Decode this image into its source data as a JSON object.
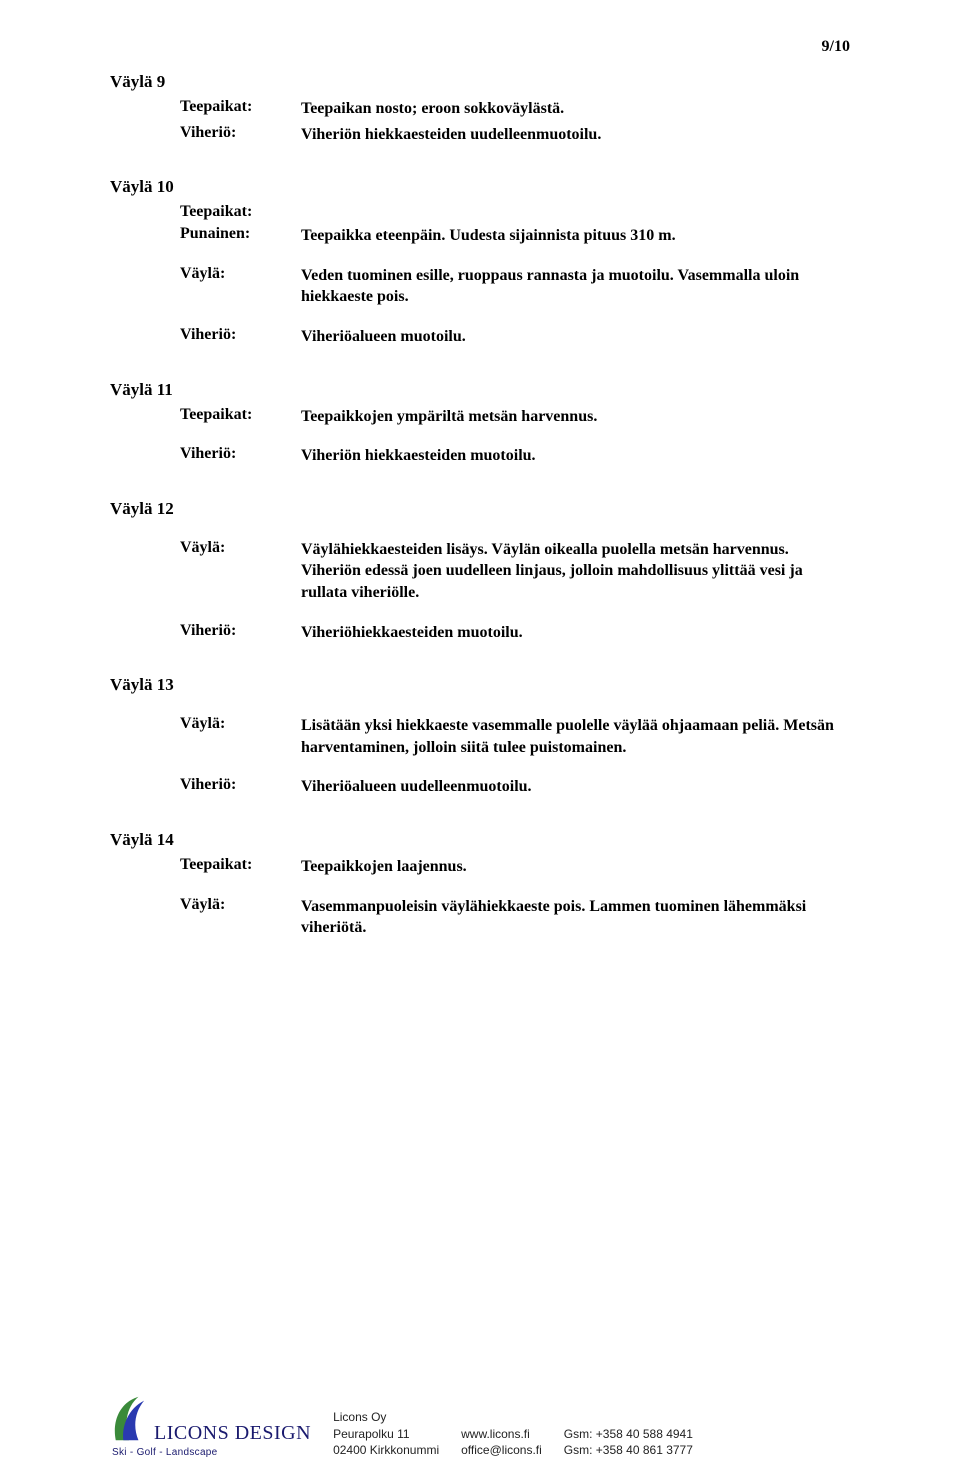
{
  "page_number": "9/10",
  "sections": [
    {
      "title": "Väylä 9",
      "rows": [
        {
          "label": "Teepaikat:",
          "value": "Teepaikan nosto; eroon sokkoväylästä."
        },
        {
          "label": "Viheriö:",
          "value": "Viheriön hiekkaesteiden uudelleenmuotoilu."
        }
      ]
    },
    {
      "title": "Väylä 10",
      "rows": [
        {
          "label": "Teepaikat:",
          "value": ""
        },
        {
          "label": "Punainen:",
          "value": "Teepaikka eteenpäin. Uudesta sijainnista pituus 310 m."
        },
        {
          "spacer": true
        },
        {
          "label": "Väylä:",
          "value": "Veden tuominen esille, ruoppaus rannasta ja muotoilu. Vasemmalla uloin hiekkaeste pois."
        },
        {
          "spacer": true
        },
        {
          "label": "Viheriö:",
          "value": "Viheriöalueen muotoilu."
        }
      ]
    },
    {
      "title": "Väylä 11",
      "rows": [
        {
          "label": "Teepaikat:",
          "value": "Teepaikkojen ympäriltä metsän harvennus."
        },
        {
          "spacer": true
        },
        {
          "label": "Viheriö:",
          "value": "Viheriön hiekkaesteiden muotoilu."
        }
      ]
    },
    {
      "title": "Väylä 12",
      "rows": [
        {
          "spacer": true
        },
        {
          "label": "Väylä:",
          "value": "Väylähiekkaesteiden lisäys. Väylän oikealla puolella metsän harvennus. Viheriön edessä joen uudelleen linjaus, jolloin mahdollisuus ylittää vesi ja rullata viheriölle."
        },
        {
          "spacer": true
        },
        {
          "label": "Viheriö:",
          "value": "Viheriöhiekkaesteiden muotoilu."
        }
      ]
    },
    {
      "title": "Väylä 13",
      "rows": [
        {
          "spacer": true
        },
        {
          "label": "Väylä:",
          "value": "Lisätään yksi hiekkaeste vasemmalle puolelle väylää ohjaamaan peliä. Metsän harventaminen, jolloin siitä tulee puistomainen."
        },
        {
          "spacer": true
        },
        {
          "label": "Viheriö:",
          "value": "Viheriöalueen uudelleenmuotoilu."
        }
      ]
    },
    {
      "title": "Väylä 14",
      "rows": [
        {
          "label": "Teepaikat:",
          "value": "Teepaikkojen laajennus."
        },
        {
          "spacer": true
        },
        {
          "label": "Väylä:",
          "value": "Vasemmanpuoleisin väylähiekkaeste pois. Lammen tuominen lähemmäksi viheriötä."
        }
      ]
    }
  ],
  "footer": {
    "logo_name": "LICONS DESIGN",
    "logo_sub": "Ski - Golf - Landscape",
    "logo_colors": {
      "green": "#3a8a3a",
      "blue": "#2a3ab0",
      "text": "#1a1a6e"
    },
    "col1": [
      "Licons Oy",
      "Peurapolku 11",
      "02400 Kirkkonummi"
    ],
    "col2": [
      "www.licons.fi",
      "office@licons.fi"
    ],
    "col3": [
      "Gsm: +358 40 588 4941",
      "Gsm: +358 40 861 3777"
    ]
  }
}
